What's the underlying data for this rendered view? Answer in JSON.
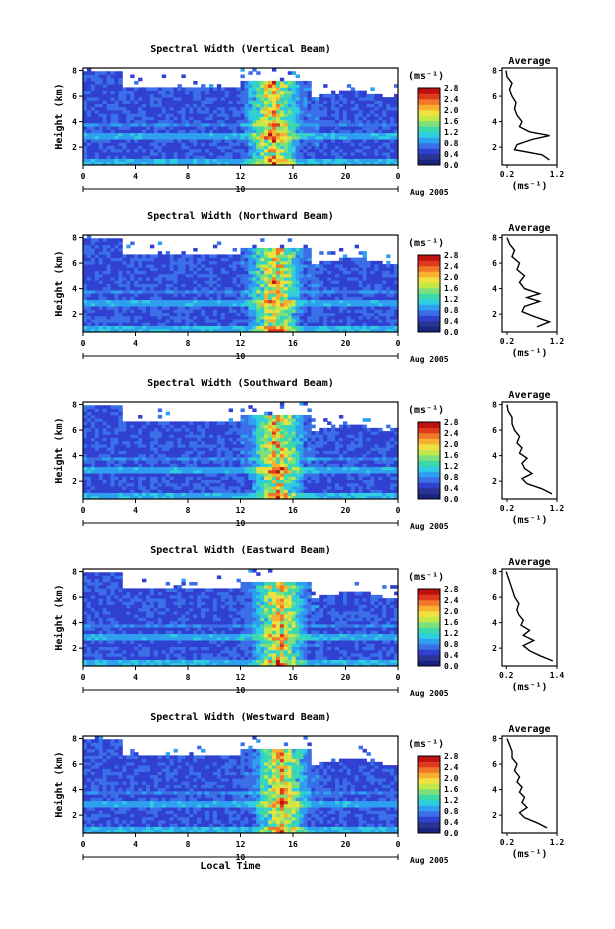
{
  "chart_data": {
    "type": "heatmap",
    "grid": false,
    "xlabel": "Local Time",
    "xticks": [
      "0",
      "4",
      "8",
      "12",
      "16",
      "20",
      "0"
    ],
    "xlim": [
      0,
      24
    ],
    "date_marker": "10",
    "date_label": "Aug 2005",
    "ylabel": "Height (km)",
    "yticks": [
      "2",
      "4",
      "6",
      "8"
    ],
    "ylim": [
      0.6,
      8.2
    ],
    "units_label": "(ms⁻¹)",
    "colorbar": {
      "ticks": [
        "0.0",
        "0.4",
        "0.8",
        "1.2",
        "1.6",
        "2.0",
        "2.4",
        "2.8"
      ],
      "range": [
        0,
        2.8
      ],
      "colors": [
        "#1a237e",
        "#283593",
        "#3040d0",
        "#3a6fe8",
        "#2f9fef",
        "#2ecde0",
        "#3fd8a8",
        "#7ee07a",
        "#c4e84a",
        "#f0e040",
        "#f8b030",
        "#f07828",
        "#e03a1e",
        "#c01010"
      ]
    },
    "profile_title": "Average",
    "profile_xlabel": "(ms⁻¹)",
    "panels": [
      {
        "title": "Spectral Width (Vertical Beam)",
        "profile_xticks": [
          "0.2",
          "1.2"
        ],
        "profile_xlim": [
          0.1,
          1.2
        ],
        "profile": {
          "height": [
            1.0,
            1.4,
            1.8,
            2.2,
            2.6,
            2.9,
            3.2,
            3.6,
            4.0,
            4.5,
            5.0,
            5.5,
            6.0,
            6.5,
            7.0,
            7.5,
            8.0
          ],
          "width": [
            1.05,
            0.9,
            0.35,
            0.4,
            0.7,
            1.05,
            0.65,
            0.45,
            0.5,
            0.4,
            0.35,
            0.38,
            0.3,
            0.25,
            0.3,
            0.2,
            0.18
          ]
        }
      },
      {
        "title": "Spectral Width (Northward Beam)",
        "profile_xticks": [
          "0.2",
          "1.2"
        ],
        "profile_xlim": [
          0.1,
          1.2
        ],
        "profile": {
          "height": [
            1.0,
            1.4,
            1.8,
            2.2,
            2.6,
            3.0,
            3.3,
            3.6,
            4.0,
            4.5,
            5.0,
            5.5,
            6.0,
            6.5,
            7.0,
            7.5,
            8.0
          ],
          "width": [
            0.8,
            1.05,
            0.75,
            0.5,
            0.55,
            0.85,
            0.6,
            0.85,
            0.55,
            0.45,
            0.55,
            0.4,
            0.45,
            0.3,
            0.35,
            0.25,
            0.2
          ]
        }
      },
      {
        "title": "Spectral Width (Southward Beam)",
        "profile_xticks": [
          "0.2",
          "1.2"
        ],
        "profile_xlim": [
          0.1,
          1.2
        ],
        "profile": {
          "height": [
            1.0,
            1.4,
            1.8,
            2.2,
            2.6,
            3.0,
            3.4,
            3.8,
            4.2,
            4.6,
            5.0,
            5.5,
            6.0,
            6.5,
            7.0,
            7.5,
            8.0
          ],
          "width": [
            1.1,
            0.9,
            0.6,
            0.5,
            0.7,
            0.55,
            0.5,
            0.6,
            0.45,
            0.5,
            0.4,
            0.45,
            0.35,
            0.3,
            0.3,
            0.22,
            0.2
          ]
        }
      },
      {
        "title": "Spectral Width (Eastward Beam)",
        "profile_xticks": [
          "0.2",
          "1.4"
        ],
        "profile_xlim": [
          0.1,
          1.4
        ],
        "profile": {
          "height": [
            1.0,
            1.4,
            1.8,
            2.2,
            2.6,
            3.0,
            3.4,
            3.8,
            4.2,
            4.6,
            5.0,
            5.5,
            6.0,
            6.5,
            7.0,
            7.5,
            8.0
          ],
          "width": [
            1.3,
            1.0,
            0.75,
            0.6,
            0.85,
            0.6,
            0.75,
            0.55,
            0.6,
            0.5,
            0.45,
            0.5,
            0.4,
            0.35,
            0.3,
            0.25,
            0.2
          ]
        }
      },
      {
        "title": "Spectral Width (Westward Beam)",
        "profile_xticks": [
          "0.2",
          "1.2"
        ],
        "profile_xlim": [
          0.1,
          1.2
        ],
        "profile": {
          "height": [
            1.0,
            1.4,
            1.8,
            2.2,
            2.6,
            3.0,
            3.4,
            3.8,
            4.2,
            4.6,
            5.0,
            5.5,
            6.0,
            6.5,
            7.0,
            7.5,
            8.0
          ],
          "width": [
            1.0,
            0.8,
            0.55,
            0.45,
            0.6,
            0.5,
            0.55,
            0.45,
            0.5,
            0.4,
            0.45,
            0.35,
            0.4,
            0.3,
            0.3,
            0.25,
            0.2
          ]
        }
      }
    ]
  }
}
